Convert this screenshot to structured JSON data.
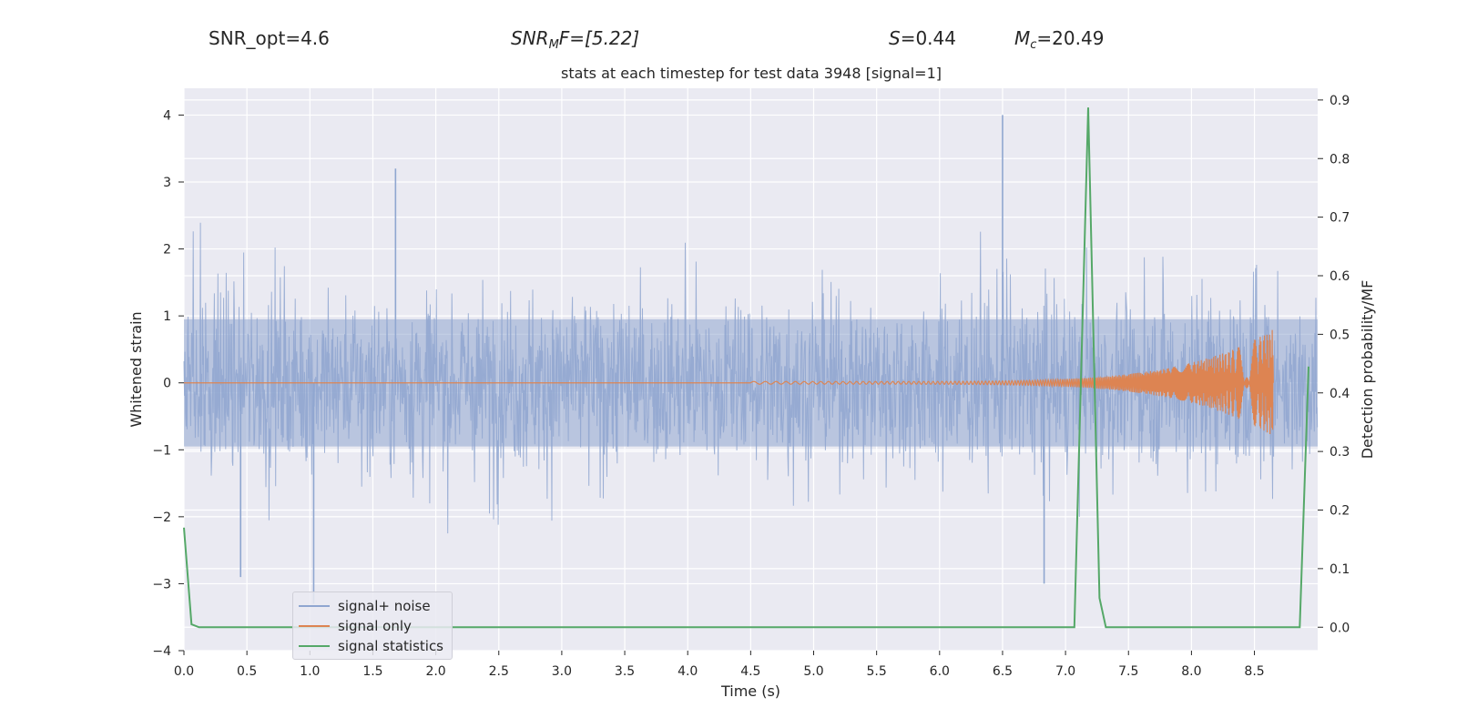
{
  "header": {
    "snr_opt": "SNR_opt=4.6",
    "snr_mf_prefix": "SNR",
    "snr_mf_sub": "M",
    "snr_mf_suffix": "F=[5.22]",
    "s_sym": "S",
    "s_val": "=0.44",
    "mc_sym": "M",
    "mc_sub": "c",
    "mc_val": "=20.49"
  },
  "chart_data": {
    "type": "line",
    "title": "stats at each timestep for test data 3948 [signal=1]",
    "xlabel": "Time (s)",
    "ylabel_left": "Whitened strain",
    "ylabel_right": "Detection probability/MF",
    "xlim": [
      0.0,
      9.0
    ],
    "ylim_left": [
      -4.0,
      4.4
    ],
    "ylim_right": [
      -0.04,
      0.92
    ],
    "x_ticks": [
      "0.0",
      "0.5",
      "1.0",
      "1.5",
      "2.0",
      "2.5",
      "3.0",
      "3.5",
      "4.0",
      "4.5",
      "5.0",
      "5.5",
      "6.0",
      "6.5",
      "7.0",
      "7.5",
      "8.0",
      "8.5"
    ],
    "y_left_ticks": [
      "4",
      "3",
      "2",
      "1",
      "0",
      "−1",
      "−2",
      "−3",
      "−4"
    ],
    "y_right_ticks": [
      "0.9",
      "0.8",
      "0.7",
      "0.6",
      "0.5",
      "0.4",
      "0.3",
      "0.2",
      "0.1",
      "0.0"
    ],
    "grid": true,
    "legend_placement": "lower-left",
    "series": [
      {
        "name": "signal+ noise",
        "color": "#8fa6d0",
        "axis": "left",
        "description_of_range": "noise between about -3.3 and 4.0",
        "envelope_peaks": [
          {
            "x": 1.68,
            "y": 3.2
          },
          {
            "x": 6.5,
            "y": 4.0
          },
          {
            "x": 6.83,
            "y": -3.0
          },
          {
            "x": 1.03,
            "y": -3.3
          },
          {
            "x": 0.45,
            "y": -2.9
          }
        ]
      },
      {
        "name": "signal only",
        "color": "#dd8452",
        "axis": "left",
        "chirp_start": 4.5,
        "chirp_end": 8.65,
        "peak_amplitude": 0.78
      },
      {
        "name": "signal statistics",
        "color": "#55a868",
        "axis": "right",
        "x": [
          0.0,
          0.06,
          0.12,
          7.07,
          7.18,
          7.27,
          7.32,
          8.86,
          8.93
        ],
        "y": [
          0.17,
          0.005,
          0.0,
          0.0,
          0.887,
          0.05,
          0.0,
          0.0,
          0.445
        ]
      }
    ]
  }
}
